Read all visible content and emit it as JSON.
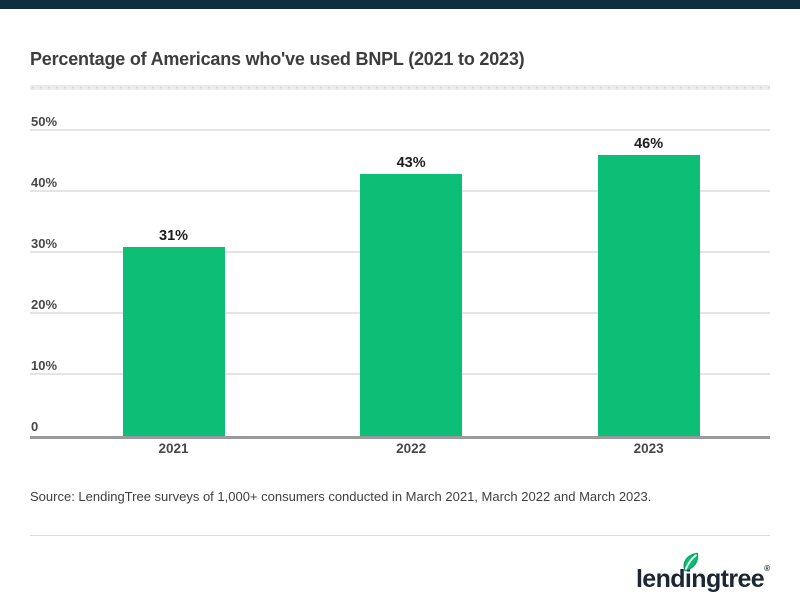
{
  "page": {
    "top_bar_color": "#0f2e3f",
    "background": "#ffffff"
  },
  "chart_data": {
    "type": "bar",
    "title": "Percentage of Americans who've used BNPL (2021 to 2023)",
    "categories": [
      "2021",
      "2022",
      "2023"
    ],
    "values": [
      31,
      43,
      46
    ],
    "value_labels": [
      "31%",
      "43%",
      "46%"
    ],
    "y_ticks": [
      {
        "value": 0,
        "label": "0"
      },
      {
        "value": 10,
        "label": "10%"
      },
      {
        "value": 20,
        "label": "20%"
      },
      {
        "value": 30,
        "label": "30%"
      },
      {
        "value": 40,
        "label": "40%"
      },
      {
        "value": 50,
        "label": "50%"
      }
    ],
    "ylim": [
      0,
      50
    ],
    "xlabel": "",
    "ylabel": "",
    "grid": true,
    "legend": false,
    "bar_color": "#0cbe76",
    "gridline_color": "#e4e4e4",
    "baseline_color": "#9a9a9a"
  },
  "source": {
    "text": "Source: LendingTree surveys of 1,000+ consumers conducted in March 2021, March 2022 and March 2023."
  },
  "footer": {
    "logo_text": "lendingtree",
    "registered_mark": "®",
    "logo_color": "#1b2733",
    "leaf_fill": "#0cbe76",
    "leaf_outline": "#0a9e5f"
  }
}
